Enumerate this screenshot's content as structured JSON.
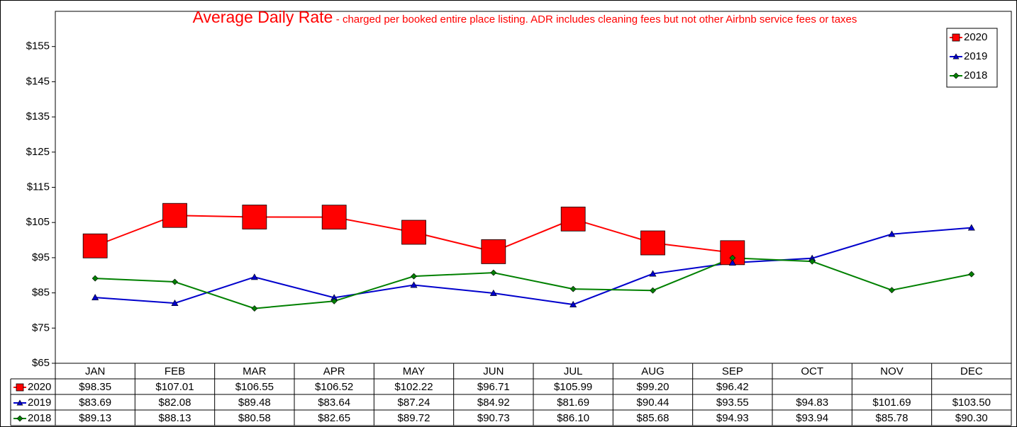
{
  "chart_data": {
    "type": "line",
    "title": "Average Daily Rate",
    "subtitle": "- charged per booked entire place listing. ADR includes cleaning fees but not other Airbnb service fees or taxes",
    "categories": [
      "JAN",
      "FEB",
      "MAR",
      "APR",
      "MAY",
      "JUN",
      "JUL",
      "AUG",
      "SEP",
      "OCT",
      "NOV",
      "DEC"
    ],
    "series": [
      {
        "name": "2020",
        "color": "#ff0000",
        "marker": "square",
        "values": [
          98.35,
          107.01,
          106.55,
          106.52,
          102.22,
          96.71,
          105.99,
          99.2,
          96.42,
          null,
          null,
          null
        ],
        "value_labels": [
          "$98.35",
          "$107.01",
          "$106.55",
          "$106.52",
          "$102.22",
          "$96.71",
          "$105.99",
          "$99.20",
          "$96.42",
          null,
          null,
          null
        ]
      },
      {
        "name": "2019",
        "color": "#0000cc",
        "marker": "triangle",
        "values": [
          83.69,
          82.08,
          89.48,
          83.64,
          87.24,
          84.92,
          81.69,
          90.44,
          93.55,
          94.83,
          101.69,
          103.5
        ],
        "value_labels": [
          "$83.69",
          "$82.08",
          "$89.48",
          "$83.64",
          "$87.24",
          "$84.92",
          "$81.69",
          "$90.44",
          "$93.55",
          "$94.83",
          "$101.69",
          "$103.50"
        ]
      },
      {
        "name": "2018",
        "color": "#008000",
        "marker": "diamond",
        "values": [
          89.13,
          88.13,
          80.58,
          82.65,
          89.72,
          90.73,
          86.1,
          85.68,
          94.93,
          93.94,
          85.78,
          90.3
        ],
        "value_labels": [
          "$89.13",
          "$88.13",
          "$80.58",
          "$82.65",
          "$89.72",
          "$90.73",
          "$86.10",
          "$85.68",
          "$94.93",
          "$93.94",
          "$85.78",
          "$90.30"
        ]
      }
    ],
    "ylim": [
      65,
      165
    ],
    "yticks": [
      {
        "value": 65,
        "label": "$65"
      },
      {
        "value": 75,
        "label": "$75"
      },
      {
        "value": 85,
        "label": "$85"
      },
      {
        "value": 95,
        "label": "$95"
      },
      {
        "value": 105,
        "label": "$105"
      },
      {
        "value": 115,
        "label": "$115"
      },
      {
        "value": 125,
        "label": "$125"
      },
      {
        "value": 135,
        "label": "$135"
      },
      {
        "value": 145,
        "label": "$145"
      },
      {
        "value": 155,
        "label": "$155"
      }
    ],
    "grid": false,
    "legend": "top-right"
  }
}
